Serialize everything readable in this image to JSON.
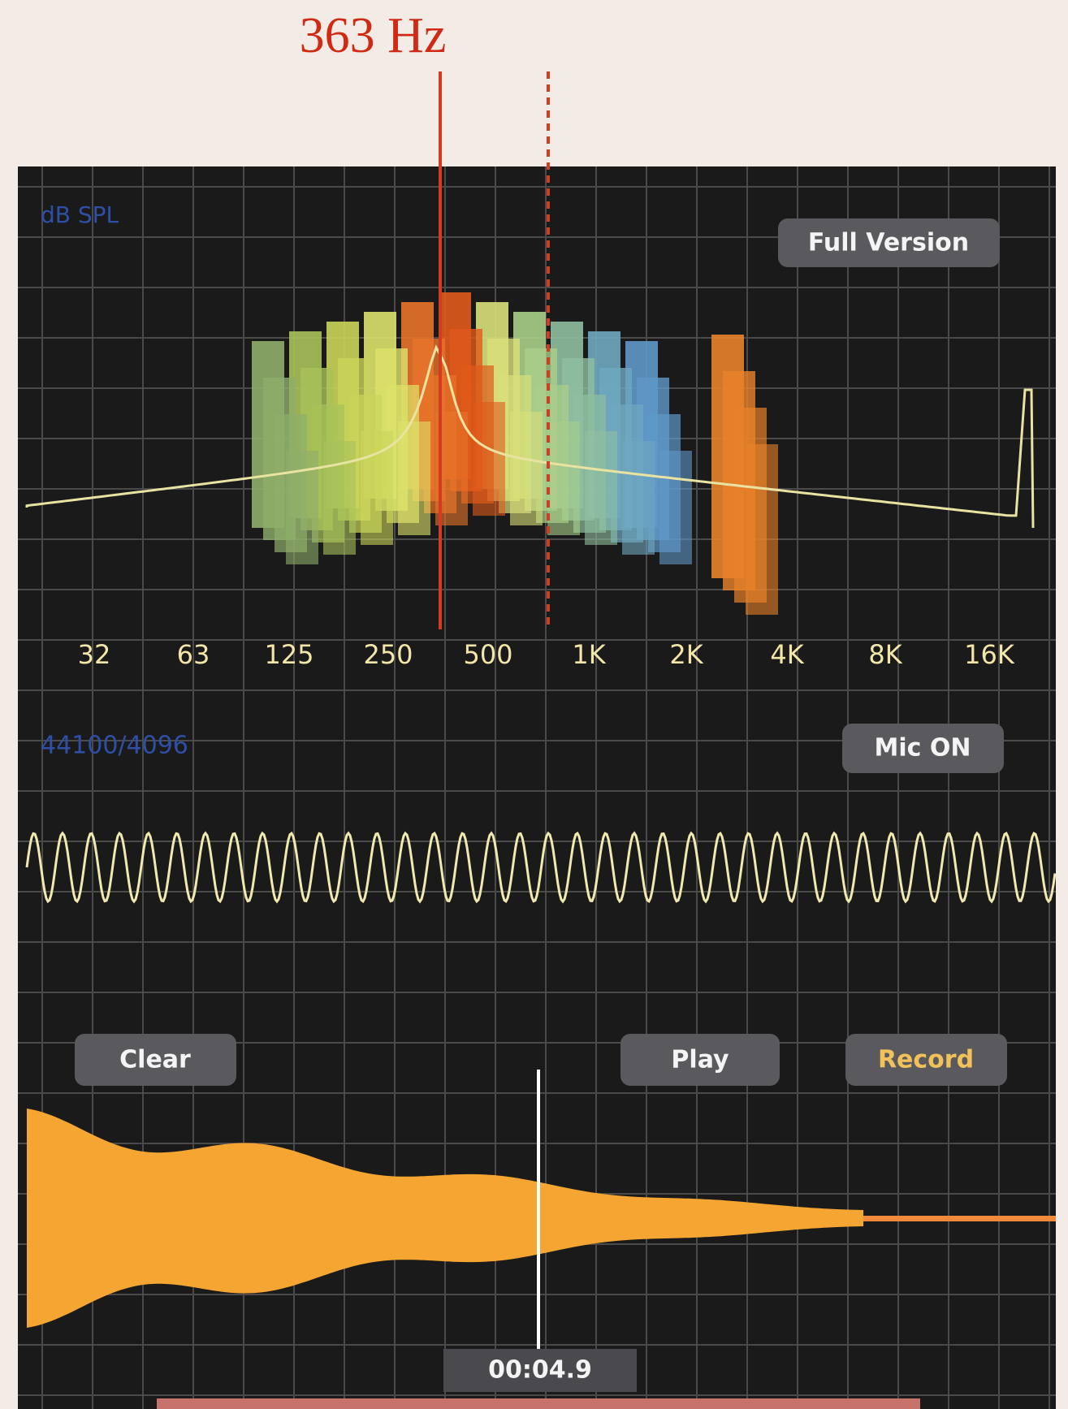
{
  "annotation": {
    "label": "363 Hz"
  },
  "spectrum": {
    "unit_label": "dB SPL",
    "button": "Full Version",
    "frequency_labels": [
      "32",
      "63",
      "125",
      "250",
      "500",
      "1K",
      "2K",
      "4K",
      "8K",
      "16K"
    ]
  },
  "oscilloscope": {
    "info": "44100/4096",
    "button": "Mic ON"
  },
  "recorder": {
    "buttons": [
      "Clear",
      "Play",
      "Record"
    ],
    "time": "00:04.9"
  }
}
